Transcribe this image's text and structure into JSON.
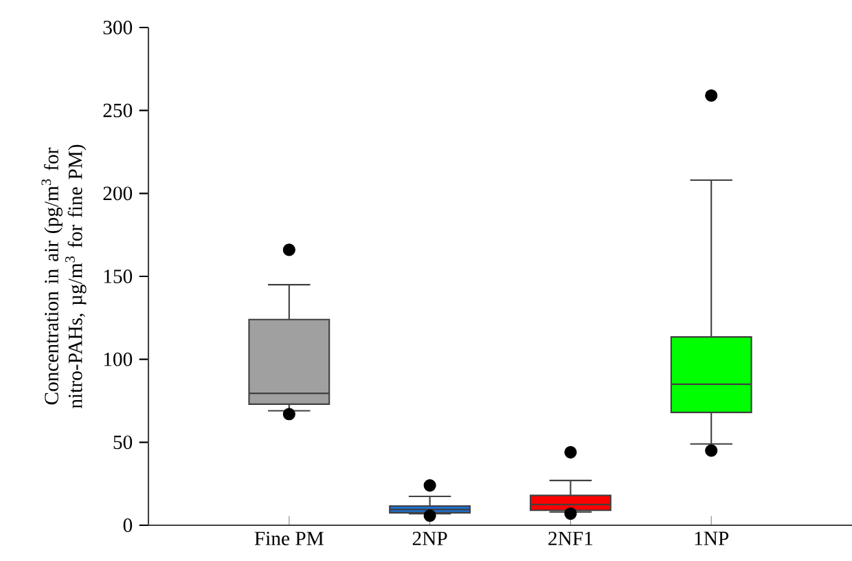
{
  "chart_data": {
    "type": "box",
    "ylabel": "Concentration in air (pg/m$^{3}$ for nitro-PAHs, µg/m$^{3}$ for fine PM)",
    "categories": [
      "Fine PM",
      "2NP",
      "2NF1",
      "1NP"
    ],
    "colors": [
      "#a0a0a0",
      "#1e6fd0",
      "#ff0000",
      "#00ff00"
    ],
    "ylim": [
      0,
      300
    ],
    "yticks": [
      0,
      50,
      100,
      150,
      200,
      250,
      300
    ],
    "boxes": [
      {
        "low": 69,
        "q1": 73,
        "median": 79.5,
        "q3": 124,
        "high": 145,
        "outliers": [
          166,
          67
        ]
      },
      {
        "low": 7,
        "q1": 7.5,
        "median": 9.5,
        "q3": 11.6,
        "high": 17.4,
        "outliers": [
          24,
          5.8
        ]
      },
      {
        "low": 8,
        "q1": 9,
        "median": 12.5,
        "q3": 18,
        "high": 27,
        "outliers": [
          44,
          7
        ]
      },
      {
        "low": 49,
        "q1": 68,
        "median": 85,
        "q3": 113.5,
        "high": 208,
        "outliers": [
          259,
          45
        ]
      }
    ]
  }
}
